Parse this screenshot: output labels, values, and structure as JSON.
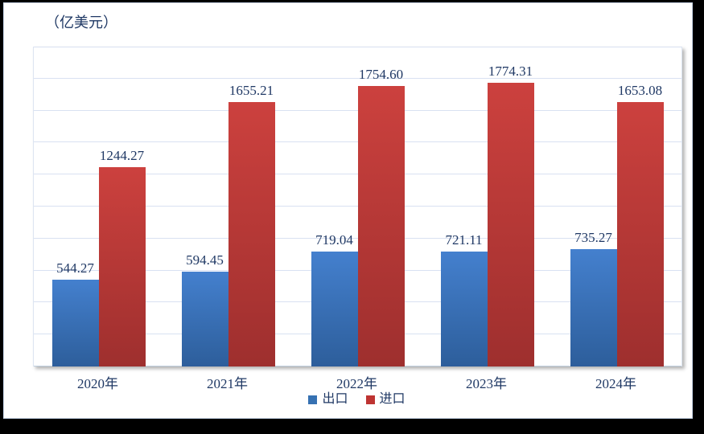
{
  "title": "（亿美元）",
  "colors": {
    "label_text": "#1f3864",
    "grid_line": "#d9e1f2",
    "axis_line": "#bfcedd",
    "export_bar_top": "#4480ce",
    "export_bar_bottom": "#2d5e9b",
    "import_bar_top": "#cc413e",
    "import_bar_bottom": "#9e2f2e",
    "legend_export_swatch": "#3671b2",
    "legend_import_swatch": "#be3432"
  },
  "chart_data": {
    "type": "bar",
    "title": "（亿美元）",
    "categories": [
      "2020年",
      "2021年",
      "2022年",
      "2023年",
      "2024年"
    ],
    "series": [
      {
        "name": "出口",
        "values": [
          544.27,
          594.45,
          719.04,
          721.11,
          735.27
        ]
      },
      {
        "name": "进口",
        "values": [
          1244.27,
          1655.21,
          1754.6,
          1774.31,
          1653.08
        ]
      }
    ],
    "xlabel": "",
    "ylabel": "（亿美元）",
    "ylim": [
      0,
      2000
    ],
    "grid_step": 200,
    "grid": true,
    "legend_position": "bottom",
    "value_labels": true,
    "value_label_decimals": 2
  }
}
